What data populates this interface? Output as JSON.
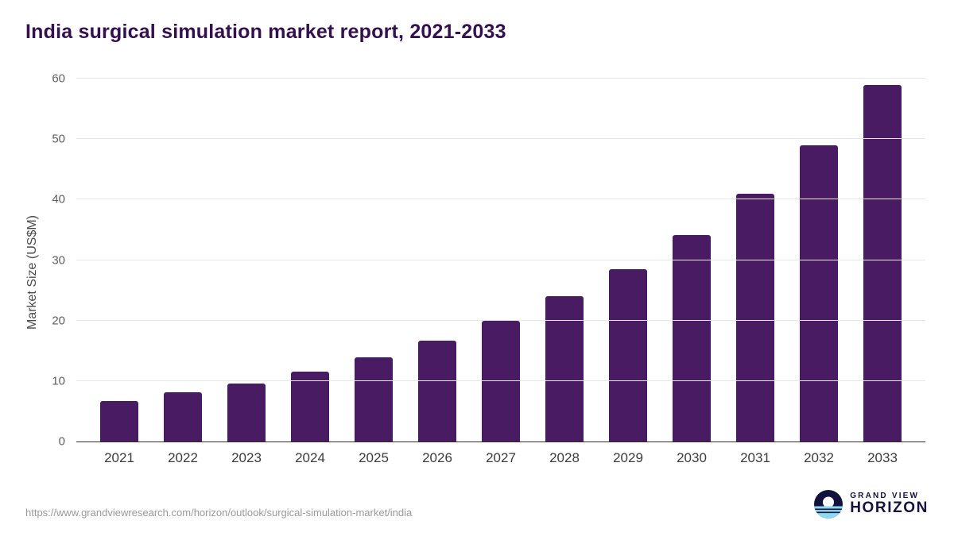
{
  "title": "India surgical simulation market report, 2021-2033",
  "chart_data": {
    "type": "bar",
    "categories": [
      "2021",
      "2022",
      "2023",
      "2024",
      "2025",
      "2026",
      "2027",
      "2028",
      "2029",
      "2030",
      "2031",
      "2032",
      "2033"
    ],
    "values": [
      6.7,
      8.1,
      9.6,
      11.5,
      13.9,
      16.7,
      19.9,
      24.0,
      28.5,
      34.2,
      41.0,
      49.0,
      59.0
    ],
    "title": "India surgical simulation market report, 2021-2033",
    "xlabel": "",
    "ylabel": "Market Size (US$M)",
    "ylim": [
      0,
      60
    ],
    "yticks": [
      0,
      10,
      20,
      30,
      40,
      50,
      60
    ],
    "bar_color": "#481b63",
    "grid": "horizontal",
    "legend": "none"
  },
  "footer": {
    "source_url": "https://www.grandviewresearch.com/horizon/outlook/surgical-simulation-market/india",
    "brand": {
      "line1": "GRAND VIEW",
      "line2": "HORIZON"
    }
  },
  "colors": {
    "title": "#33104e",
    "bar": "#481b63",
    "gridline": "#e7e7e7",
    "axis_line": "#2e2e2e",
    "brand_navy": "#12123d",
    "brand_light_blue": "#8fd9f0"
  }
}
